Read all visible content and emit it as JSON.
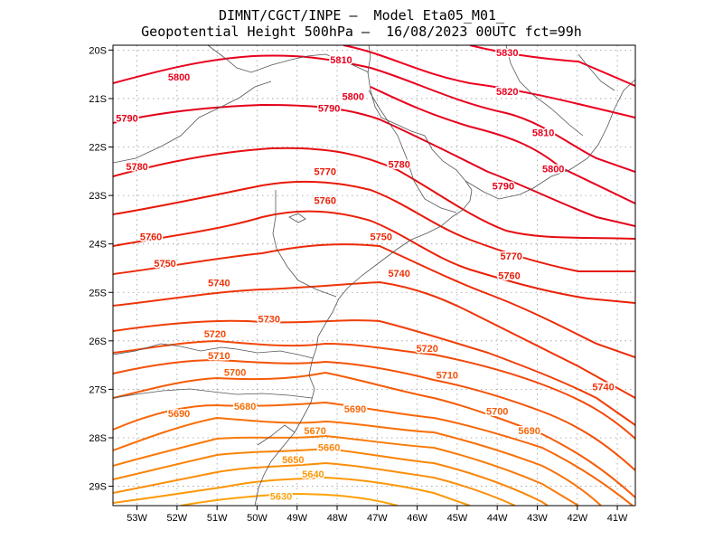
{
  "header": {
    "line1": "DIMNT/CGCT/INPE –  Model Eta05_M01_",
    "line2": "Geopotential Height 500hPa –  16/08/2023 00UTC fct=99h"
  },
  "map": {
    "lon_range": [
      -53.6,
      -40.55
    ],
    "lat_range": [
      -29.4,
      -19.9
    ],
    "x_ticks": [
      {
        "value": -53,
        "label": "53W"
      },
      {
        "value": -52,
        "label": "52W"
      },
      {
        "value": -51,
        "label": "51W"
      },
      {
        "value": -50,
        "label": "50W"
      },
      {
        "value": -49,
        "label": "49W"
      },
      {
        "value": -48,
        "label": "48W"
      },
      {
        "value": -47,
        "label": "47W"
      },
      {
        "value": -46,
        "label": "46W"
      },
      {
        "value": -45,
        "label": "45W"
      },
      {
        "value": -44,
        "label": "44W"
      },
      {
        "value": -43,
        "label": "43W"
      },
      {
        "value": -42,
        "label": "42W"
      },
      {
        "value": -41,
        "label": "41W"
      }
    ],
    "y_ticks": [
      {
        "value": -20,
        "label": "20S"
      },
      {
        "value": -21,
        "label": "21S"
      },
      {
        "value": -22,
        "label": "22S"
      },
      {
        "value": -23,
        "label": "23S"
      },
      {
        "value": -24,
        "label": "24S"
      },
      {
        "value": -25,
        "label": "25S"
      },
      {
        "value": -26,
        "label": "26S"
      },
      {
        "value": -27,
        "label": "27S"
      },
      {
        "value": -28,
        "label": "28S"
      },
      {
        "value": -29,
        "label": "29S"
      }
    ],
    "grid": "dotted",
    "colors": {
      "high": "#e60000",
      "low": "#ff8000",
      "land_lines": "#555555"
    }
  },
  "contour_labels": [
    {
      "text": "5830",
      "lon": -43.75,
      "lat": -20.05,
      "color": "#ee0020"
    },
    {
      "text": "5810",
      "lon": -47.9,
      "lat": -20.2,
      "color": "#e8001e"
    },
    {
      "text": "5800",
      "lon": -51.95,
      "lat": -20.55,
      "color": "#e8001e"
    },
    {
      "text": "5800",
      "lon": -47.6,
      "lat": -20.95,
      "color": "#e8001e"
    },
    {
      "text": "5820",
      "lon": -43.75,
      "lat": -20.85,
      "color": "#ee0020"
    },
    {
      "text": "5790",
      "lon": -53.25,
      "lat": -21.4,
      "color": "#e3001a"
    },
    {
      "text": "5790",
      "lon": -48.2,
      "lat": -21.2,
      "color": "#e3001a"
    },
    {
      "text": "5810",
      "lon": -42.85,
      "lat": -21.7,
      "color": "#e8001e"
    },
    {
      "text": "5780",
      "lon": -53.0,
      "lat": -22.4,
      "color": "#e60d10"
    },
    {
      "text": "5780",
      "lon": -46.45,
      "lat": -22.35,
      "color": "#e60d10"
    },
    {
      "text": "5800",
      "lon": -42.6,
      "lat": -22.45,
      "color": "#e8001e"
    },
    {
      "text": "5770",
      "lon": -48.3,
      "lat": -22.5,
      "color": "#e81808"
    },
    {
      "text": "5790",
      "lon": -43.85,
      "lat": -22.8,
      "color": "#e3001a"
    },
    {
      "text": "5760",
      "lon": -48.3,
      "lat": -23.1,
      "color": "#ea2008"
    },
    {
      "text": "5760",
      "lon": -52.65,
      "lat": -23.85,
      "color": "#ea2008"
    },
    {
      "text": "5750",
      "lon": -46.9,
      "lat": -23.85,
      "color": "#ec2a08"
    },
    {
      "text": "5770",
      "lon": -43.65,
      "lat": -24.25,
      "color": "#e81808"
    },
    {
      "text": "5750",
      "lon": -52.3,
      "lat": -24.4,
      "color": "#ec2a08"
    },
    {
      "text": "5740",
      "lon": -50.95,
      "lat": -24.8,
      "color": "#ee3408"
    },
    {
      "text": "5740",
      "lon": -46.45,
      "lat": -24.6,
      "color": "#ee3408"
    },
    {
      "text": "5760",
      "lon": -43.7,
      "lat": -24.65,
      "color": "#ea2008"
    },
    {
      "text": "5730",
      "lon": -49.7,
      "lat": -25.55,
      "color": "#f03e08"
    },
    {
      "text": "5720",
      "lon": -51.05,
      "lat": -25.85,
      "color": "#f24808"
    },
    {
      "text": "5720",
      "lon": -45.75,
      "lat": -26.15,
      "color": "#f24808"
    },
    {
      "text": "5710",
      "lon": -50.95,
      "lat": -26.3,
      "color": "#f45208"
    },
    {
      "text": "5700",
      "lon": -50.55,
      "lat": -26.65,
      "color": "#f55c08"
    },
    {
      "text": "5710",
      "lon": -45.25,
      "lat": -26.7,
      "color": "#f45208"
    },
    {
      "text": "5740",
      "lon": -41.35,
      "lat": -26.95,
      "color": "#ee3408"
    },
    {
      "text": "5690",
      "lon": -51.95,
      "lat": -27.5,
      "color": "#f76608"
    },
    {
      "text": "5680",
      "lon": -50.3,
      "lat": -27.35,
      "color": "#f87008"
    },
    {
      "text": "5690",
      "lon": -47.55,
      "lat": -27.4,
      "color": "#f76608"
    },
    {
      "text": "5700",
      "lon": -44.0,
      "lat": -27.45,
      "color": "#f55c08"
    },
    {
      "text": "5690",
      "lon": -43.2,
      "lat": -27.85,
      "color": "#f76608"
    },
    {
      "text": "5670",
      "lon": -48.55,
      "lat": -27.85,
      "color": "#f97a08"
    },
    {
      "text": "5660",
      "lon": -48.2,
      "lat": -28.2,
      "color": "#fa8408"
    },
    {
      "text": "5650",
      "lon": -49.1,
      "lat": -28.45,
      "color": "#fb8e08"
    },
    {
      "text": "5640",
      "lon": -48.6,
      "lat": -28.75,
      "color": "#fc9808"
    },
    {
      "text": "5630",
      "lon": -49.4,
      "lat": -29.2,
      "color": "#fda208"
    }
  ]
}
